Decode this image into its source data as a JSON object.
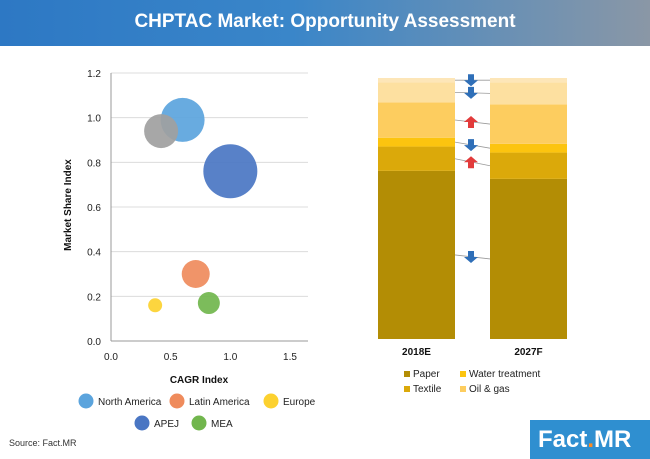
{
  "title": "CHPTAC Market: Opportunity Assessment",
  "source": "Source: Fact.MR",
  "logo": {
    "part1": "Fact",
    "dot": ".",
    "part2": "MR"
  },
  "chart_data": [
    {
      "type": "scatter",
      "subtype": "bubble",
      "xlabel": "CAGR Index",
      "ylabel": "Market Share Index",
      "xlim": [
        0,
        1.5
      ],
      "ylim": [
        0,
        1.2
      ],
      "xticks": [
        "0.0",
        "0.5",
        "1.0",
        "1.5"
      ],
      "yticks": [
        "0.0",
        "0.2",
        "0.4",
        "0.6",
        "0.8",
        "1.0",
        "1.2"
      ],
      "grid": "horizontal",
      "legend_position": "bottom",
      "series": [
        {
          "name": "North America",
          "color": "#5ba4dd",
          "x": 0.6,
          "y": 0.99,
          "size": 22
        },
        {
          "name": "Latin America",
          "color": "#ef8b5c",
          "x": 0.71,
          "y": 0.3,
          "size": 14
        },
        {
          "name": "Europe",
          "color": "#fcd12f",
          "x": 0.37,
          "y": 0.16,
          "size": 7
        },
        {
          "name": "APEJ",
          "color": "#4a76c3",
          "x": 1.0,
          "y": 0.76,
          "size": 27
        },
        {
          "name": "MEA",
          "color": "#71b64d",
          "x": 0.82,
          "y": 0.17,
          "size": 11
        },
        {
          "name": "",
          "color": "#a0a0a0",
          "x": 0.42,
          "y": 0.94,
          "size": 17
        }
      ]
    },
    {
      "type": "bar",
      "subtype": "stacked-100",
      "categories": [
        "2018E",
        "2027F"
      ],
      "series": [
        {
          "name": "Paper",
          "color": "#b38d05",
          "values": [
            76,
            73
          ],
          "trend": "down"
        },
        {
          "name": "Textile",
          "color": "#dba90a",
          "values": [
            11,
            12
          ],
          "trend": "up"
        },
        {
          "name": "Water treatment",
          "color": "#fcc40f",
          "values": [
            4,
            4
          ],
          "trend": "down"
        },
        {
          "name": "Oil & gas",
          "color": "#fdcd5f",
          "values": [
            16,
            18
          ],
          "trend": "up"
        },
        {
          "name": "",
          "color": "#fde0a0",
          "values": [
            9,
            10
          ],
          "trend": "down"
        },
        {
          "name": "",
          "color": "#fde6b8",
          "values": [
            2,
            2
          ],
          "trend": "down"
        }
      ],
      "legend": [
        "Paper",
        "Water treatment",
        "Textile",
        "Oil & gas"
      ],
      "legend_position": "bottom"
    }
  ]
}
